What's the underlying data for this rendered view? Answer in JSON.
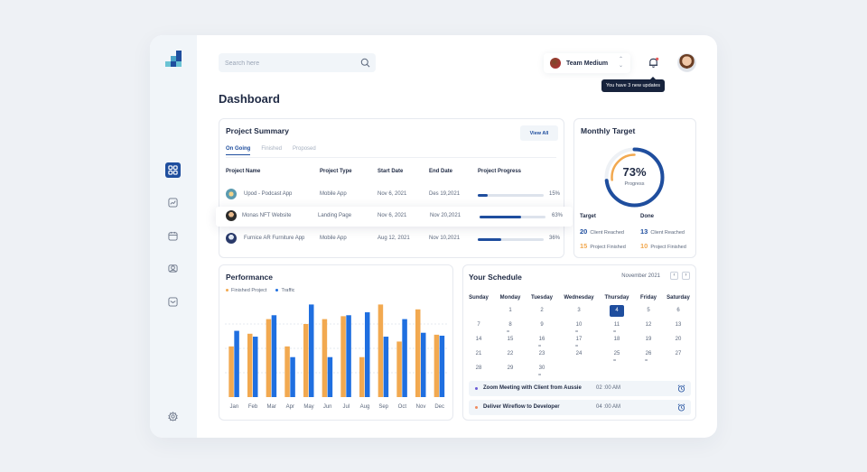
{
  "search": {
    "placeholder": "Search here"
  },
  "header": {
    "team": "Team Medium",
    "notification_tooltip": "You have 3 new updates",
    "page_title": "Dashboard"
  },
  "project_summary": {
    "title": "Project Summary",
    "view_all": "View All",
    "tabs": [
      "On Going",
      "Finished",
      "Proposed"
    ],
    "columns": [
      "Project Name",
      "Project Type",
      "Start Date",
      "End Date",
      "Project Progress"
    ],
    "rows": [
      {
        "name": "Upod - Podcast App",
        "type": "Mobile App",
        "start": "Nov 6, 2021",
        "end": "Des 19,2021",
        "progress": 15,
        "progress_label": "15%"
      },
      {
        "name": "Monas NFT Website",
        "type": "Landing Page",
        "start": "Nov 6, 2021",
        "end": "Nov 20,2021",
        "progress": 63,
        "progress_label": "63%"
      },
      {
        "name": "Furnice AR  Furniture App",
        "type": "Mobile App",
        "start": "Aug 12, 2021",
        "end": "Nov 10,2021",
        "progress": 36,
        "progress_label": "36%"
      }
    ]
  },
  "monthly_target": {
    "title": "Monthly Target",
    "percent_label": "73%",
    "percent": 73,
    "progress_label": "Progress",
    "target_label": "Target",
    "done_label": "Done",
    "target": [
      {
        "value": "20",
        "label": "Client Reached"
      },
      {
        "value": "15",
        "label": "Project Finished"
      }
    ],
    "done": [
      {
        "value": "13",
        "label": "Client Reached"
      },
      {
        "value": "10",
        "label": "Project Finished"
      }
    ]
  },
  "performance": {
    "title": "Performance",
    "legend": [
      "Finished Project",
      "Traffic"
    ]
  },
  "schedule": {
    "title": "Your Schedule",
    "month": "November 2021",
    "prev_icon": "chevron-left-icon",
    "next_icon": "chevron-right-icon",
    "weekdays": [
      "Sunday",
      "Monday",
      "Tuesday",
      "Wednesday",
      "Thursday",
      "Friday",
      "Saturday"
    ],
    "weeks": [
      [
        "",
        "1",
        "2",
        "3",
        "4",
        "5",
        "6"
      ],
      [
        "7",
        "8",
        "9",
        "10",
        "11",
        "12",
        "13"
      ],
      [
        "14",
        "15",
        "16",
        "17",
        "18",
        "19",
        "20"
      ],
      [
        "21",
        "22",
        "23",
        "24",
        "25",
        "26",
        "27"
      ],
      [
        "28",
        "29",
        "30",
        "",
        "",
        "",
        ""
      ]
    ],
    "selected_day": "4",
    "event_days": [
      "8",
      "10",
      "11",
      "16",
      "17",
      "25",
      "26",
      "30"
    ],
    "events": [
      {
        "title": "Zoom Meeting with Client from Aussie",
        "time": "02 :00 AM",
        "color": "#6b5bd6"
      },
      {
        "title": "Deliver Wireflow to Developer",
        "time": "04 :00 AM",
        "color": "#f08a5d"
      }
    ]
  },
  "chart_data": {
    "type": "bar",
    "title": "Performance",
    "categories": [
      "Jan",
      "Feb",
      "Mar",
      "Apr",
      "May",
      "Jun",
      "Jul",
      "Aug",
      "Sep",
      "Oct",
      "Nov",
      "Dec"
    ],
    "series": [
      {
        "name": "Finished Project",
        "color": "#f2a950",
        "values": [
          52,
          65,
          80,
          52,
          75,
          80,
          83,
          41,
          95,
          57,
          90,
          64
        ]
      },
      {
        "name": "Traffic",
        "color": "#1f6fe0",
        "values": [
          68,
          62,
          84,
          41,
          95,
          41,
          84,
          87,
          62,
          80,
          66,
          63
        ]
      }
    ],
    "ylim": [
      0,
      100
    ],
    "grid": true,
    "legend_position": "top-left"
  },
  "colors": {
    "primary": "#1f4e9e",
    "accent": "#f2a950",
    "traffic": "#1f6fe0"
  }
}
